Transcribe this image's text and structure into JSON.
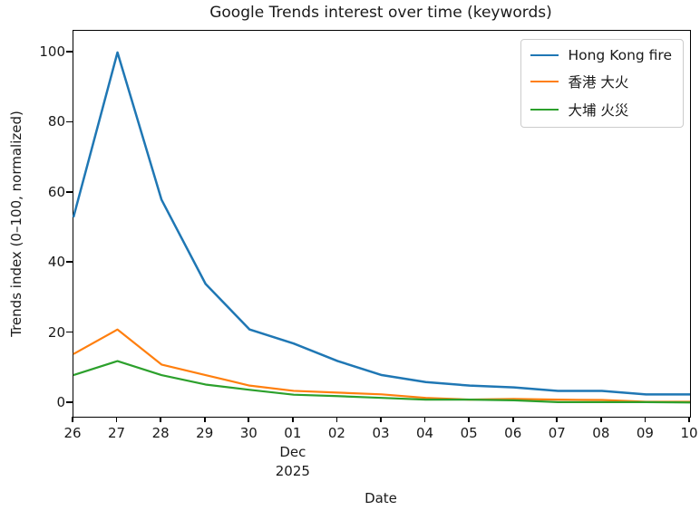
{
  "title": "Google Trends interest over time (keywords)",
  "axes": {
    "xlabel": "Date",
    "ylabel": "Trends index (0–100, normalized)",
    "x_tick_labels": [
      "26",
      "27",
      "28",
      "29",
      "30",
      "01",
      "02",
      "03",
      "04",
      "05",
      "06",
      "07",
      "08",
      "09",
      "10"
    ],
    "x_sub_label": {
      "tick_index": 5,
      "lines": [
        "Dec",
        "2025"
      ]
    },
    "y_tick_labels": [
      0,
      20,
      40,
      60,
      80,
      100
    ]
  },
  "legend": {
    "position": "upper-right",
    "entries": [
      {
        "label": "Hong Kong fire",
        "color": "#1f77b4"
      },
      {
        "label": "香港 大火",
        "color": "#ff7f0e"
      },
      {
        "label": "大埔 火災",
        "color": "#2ca02c"
      }
    ]
  },
  "colors": {
    "blue": "#1f77b4",
    "orange": "#ff7f0e",
    "green": "#2ca02c",
    "axis": "#000000",
    "text": "#1a1a1a"
  },
  "chart_data": {
    "type": "line",
    "title": "Google Trends interest over time (keywords)",
    "xlabel": "Date",
    "ylabel": "Trends index (0–100, normalized)",
    "x": [
      "Nov 26",
      "Nov 27",
      "Nov 28",
      "Nov 29",
      "Nov 30",
      "Dec 01",
      "Dec 02",
      "Dec 03",
      "Dec 04",
      "Dec 05",
      "Dec 06",
      "Dec 07",
      "Dec 08",
      "Dec 09",
      "Dec 10"
    ],
    "x_year": "2025",
    "ylim": [
      -5,
      107
    ],
    "grid": false,
    "legend_position": "upper right",
    "series": [
      {
        "name": "Hong Kong fire",
        "color": "#1f77b4",
        "values": [
          53,
          100,
          58,
          34,
          21,
          17,
          12,
          8,
          6,
          5,
          4.5,
          3.5,
          3.5,
          2.5,
          2.5
        ]
      },
      {
        "name": "香港 大火",
        "color": "#ff7f0e",
        "values": [
          14,
          21,
          11,
          8,
          5,
          3.5,
          3,
          2.5,
          1.5,
          1,
          1.2,
          1,
          0.9,
          0.4,
          0.4
        ]
      },
      {
        "name": "大埔 火災",
        "color": "#2ca02c",
        "values": [
          8,
          12,
          8,
          5.3,
          3.8,
          2.4,
          2,
          1.5,
          1,
          1,
          0.8,
          0.3,
          0.3,
          0.3,
          0.2
        ]
      }
    ]
  }
}
